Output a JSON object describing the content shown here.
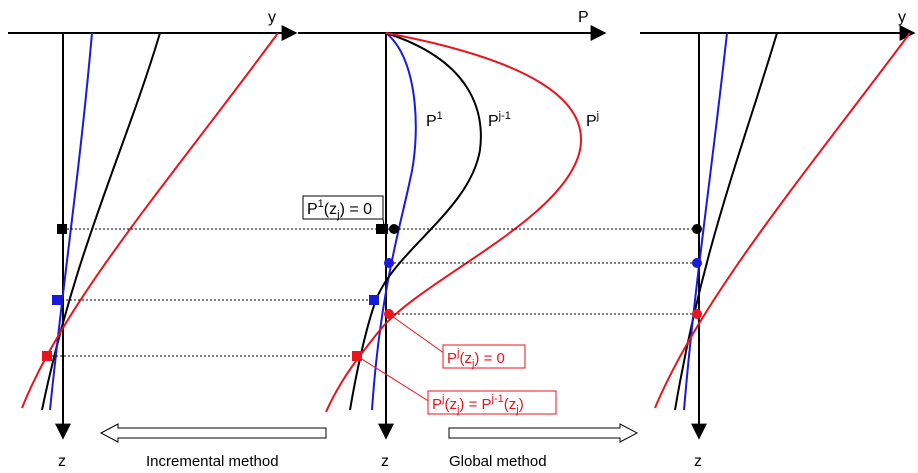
{
  "panels": {
    "left": {
      "h_axis_label": "y",
      "v_axis_label": "z"
    },
    "middle": {
      "h_axis_label": "P",
      "v_axis_label": "z"
    },
    "right": {
      "h_axis_label": "y",
      "v_axis_label": "z"
    }
  },
  "curve_labels": {
    "p1": {
      "base": "P",
      "sup": "1"
    },
    "pj1": {
      "base": "P",
      "sup": "j-1"
    },
    "pj": {
      "base": "P",
      "sup": "j"
    }
  },
  "annotations": {
    "p1_zero": {
      "text": "P¹(zⱼ) = 0",
      "a": "P",
      "a_sup": "1",
      "b": "(z",
      "b_sub": "j",
      "c": ") = 0"
    },
    "pj_zero": {
      "a": "P",
      "a_sup": "j",
      "b": "(z",
      "b_sub": "j",
      "c": ") = 0"
    },
    "pj_eq": {
      "a": "P",
      "a_sup": "j",
      "b": "(z",
      "b_sub": "j",
      "c": ") = P",
      "c_sup": "j-1",
      "d": "(z",
      "d_sub": "j",
      "e": ")"
    }
  },
  "methods": {
    "incremental": "Incremental method",
    "global": "Global method"
  },
  "colors": {
    "black": "#000000",
    "blue": "#1a1adb",
    "red": "#e8141e",
    "arrow_fill": "#ffffff"
  }
}
